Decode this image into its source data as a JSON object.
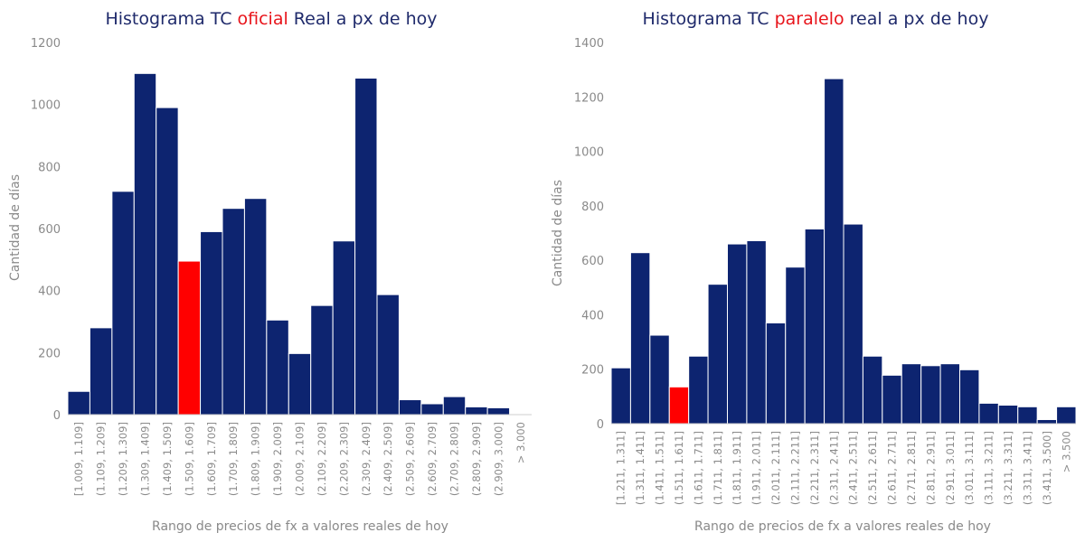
{
  "colors": {
    "bar": "#0d2470",
    "highlight": "#ff0000",
    "title": "#1f2a6b",
    "title_highlight": "#e8141b",
    "text": "#8a8a8a"
  },
  "chart_data": [
    {
      "type": "bar",
      "title_parts": [
        "Histograma TC ",
        "oficial",
        " Real a px de hoy"
      ],
      "title_highlight_index": 1,
      "xlabel": "Rango de precios de fx a valores reales de hoy",
      "ylabel": "Cantidad de días",
      "ylim": [
        0,
        1200
      ],
      "yticks": [
        0,
        200,
        400,
        600,
        800,
        1000,
        1200
      ],
      "highlight_index": 5,
      "categories": [
        "[1.009, 1.109]",
        "(1.109, 1.209]",
        "(1.209, 1.309]",
        "(1.309, 1.409]",
        "(1.409, 1.509]",
        "(1.509, 1.609]",
        "(1.609, 1.709]",
        "(1.709, 1.809]",
        "(1.809, 1.909]",
        "(1.909, 2.009]",
        "(2.009, 2.109]",
        "(2.109, 2.209]",
        "(2.209, 2.309]",
        "(2.309, 2.409]",
        "(2.409, 2.509]",
        "(2.509, 2.609]",
        "(2.609, 2.709]",
        "(2.709, 2.809]",
        "(2.809, 2.909]",
        "(2.909, 3.000]",
        "> 3.000"
      ],
      "values": [
        75,
        280,
        720,
        1100,
        990,
        495,
        590,
        665,
        697,
        305,
        197,
        352,
        560,
        1085,
        387,
        48,
        35,
        58,
        25,
        22,
        0
      ]
    },
    {
      "type": "bar",
      "title_parts": [
        "Histograma TC ",
        "paralelo",
        " real a px de hoy"
      ],
      "title_highlight_index": 1,
      "xlabel": "Rango de precios de fx a valores reales de hoy",
      "ylabel": "Cantidad de días",
      "ylim": [
        0,
        1400
      ],
      "yticks": [
        0,
        200,
        400,
        600,
        800,
        1000,
        1200,
        1400
      ],
      "highlight_index": 3,
      "categories": [
        "[1.211, 1.311]",
        "(1.311, 1.411]",
        "(1.411, 1.511]",
        "(1.511, 1.611]",
        "(1.611, 1.711]",
        "(1.711, 1.811]",
        "(1.811, 1.911]",
        "(1.911, 2.011]",
        "(2.011, 2.111]",
        "(2.111, 2.211]",
        "(2.211, 2.311]",
        "(2.311, 2.411]",
        "(2.411, 2.511]",
        "(2.511, 2.611]",
        "(2.611, 2.711]",
        "(2.711, 2.811]",
        "(2.811, 2.911]",
        "(2.911, 3.011]",
        "(3.011, 3.111]",
        "(3.111, 3.211]",
        "(3.211, 3.311]",
        "(3.311, 3.411]",
        "(3.411, 3.500]",
        "> 3.500"
      ],
      "values": [
        205,
        628,
        325,
        135,
        248,
        512,
        660,
        672,
        370,
        575,
        715,
        1267,
        733,
        248,
        178,
        220,
        213,
        220,
        198,
        75,
        68,
        62,
        15,
        62
      ]
    }
  ]
}
